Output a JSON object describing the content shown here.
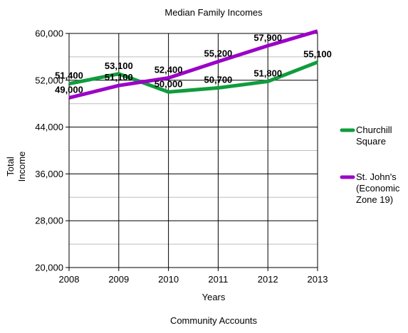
{
  "chart_data": {
    "type": "line",
    "title": "Median Family Incomes",
    "xlabel": "Years",
    "ylabel_lines": [
      "Total",
      "Income"
    ],
    "footer": "Community Accounts",
    "x": [
      "2008",
      "2009",
      "2010",
      "2011",
      "2012",
      "2013"
    ],
    "ylim": [
      20000,
      60000
    ],
    "yticks": [
      20000,
      28000,
      36000,
      44000,
      52000,
      60000
    ],
    "ytick_labels": [
      "20,000",
      "28,000",
      "36,000",
      "44,000",
      "52,000",
      "60,000"
    ],
    "grid": true,
    "legend_position": "right",
    "series": [
      {
        "name": "Churchill Square",
        "legend_lines": [
          "Churchill",
          "Square"
        ],
        "color": "#109c3c",
        "values": [
          51400,
          53100,
          50000,
          50700,
          51800,
          55100
        ],
        "labels": [
          "51,400",
          "53,100",
          "50,000",
          "50,700",
          "51,800",
          "55,100"
        ]
      },
      {
        "name": "St. John's (Economic Zone 19)",
        "legend_lines": [
          "St. John's",
          "(Economic",
          "Zone 19)"
        ],
        "color": "#9c00c8",
        "values": [
          49000,
          51100,
          52400,
          55200,
          57900,
          60400
        ],
        "labels": [
          "49,000",
          "51,100",
          "52,400",
          "55,200",
          "57,900",
          ""
        ]
      }
    ]
  }
}
